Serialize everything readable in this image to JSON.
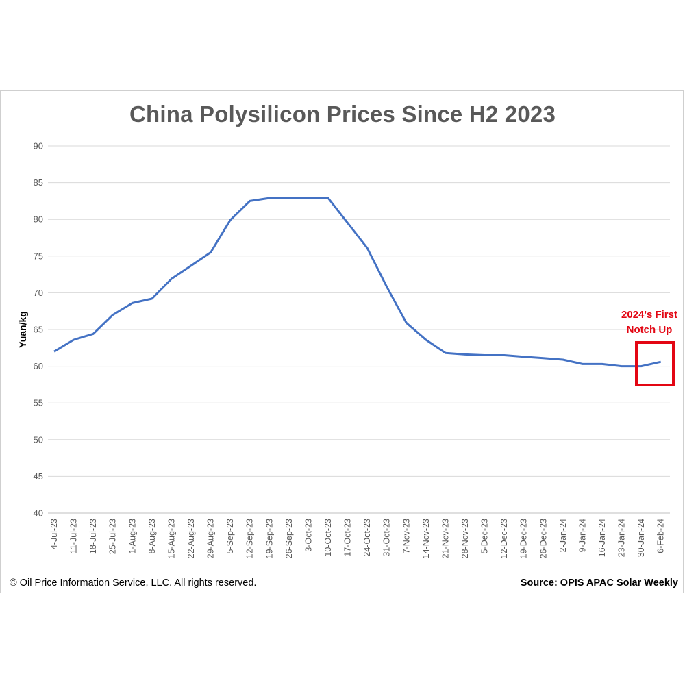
{
  "chart_data": {
    "type": "line",
    "title": "China Polysilicon Prices Since H2 2023",
    "ylabel": "Yuan/kg",
    "xlabel": "",
    "ylim": [
      40,
      90
    ],
    "yticks": [
      40,
      45,
      50,
      55,
      60,
      65,
      70,
      75,
      80,
      85,
      90
    ],
    "grid": true,
    "legend": "none",
    "categories": [
      "4-Jul-23",
      "11-Jul-23",
      "18-Jul-23",
      "25-Jul-23",
      "1-Aug-23",
      "8-Aug-23",
      "15-Aug-23",
      "22-Aug-23",
      "29-Aug-23",
      "5-Sep-23",
      "12-Sep-23",
      "19-Sep-23",
      "26-Sep-23",
      "3-Oct-23",
      "10-Oct-23",
      "17-Oct-23",
      "24-Oct-23",
      "31-Oct-23",
      "7-Nov-23",
      "14-Nov-23",
      "21-Nov-23",
      "28-Nov-23",
      "5-Dec-23",
      "12-Dec-23",
      "19-Dec-23",
      "26-Dec-23",
      "2-Jan-24",
      "9-Jan-24",
      "16-Jan-24",
      "23-Jan-24",
      "30-Jan-24",
      "6-Feb-24"
    ],
    "series": [
      {
        "values": [
          62.0,
          63.6,
          64.4,
          67.0,
          68.6,
          69.2,
          71.9,
          73.7,
          75.5,
          79.9,
          82.5,
          82.9,
          82.9,
          82.9,
          82.9,
          79.5,
          76.1,
          70.8,
          65.9,
          63.6,
          61.8,
          61.6,
          61.5,
          61.5,
          61.3,
          61.1,
          60.9,
          60.3,
          60.3,
          60.0,
          60.0,
          60.6
        ],
        "color": "#4472c4"
      }
    ],
    "annotation": {
      "text_line1": "2024's First",
      "text_line2": "Notch Up",
      "color": "#e30613"
    }
  },
  "footer": {
    "copyright": "© Oil Price Information Service, LLC.  All rights reserved.",
    "source": "Source: OPIS APAC Solar Weekly"
  }
}
